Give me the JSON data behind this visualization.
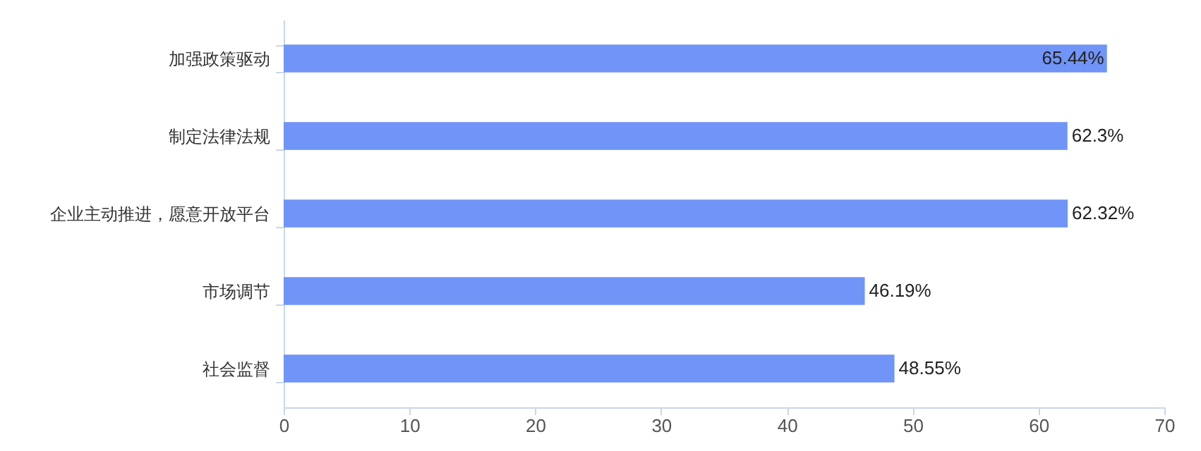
{
  "chart_data": {
    "type": "bar",
    "orientation": "horizontal",
    "categories": [
      "加强政策驱动",
      "制定法律法规",
      "企业主动推进，愿意开放平台",
      "市场调节",
      "社会监督"
    ],
    "values": [
      65.44,
      62.3,
      62.32,
      46.19,
      48.55
    ],
    "value_labels": [
      "65.44%",
      "62.3%",
      "62.32%",
      "46.19%",
      "48.55%"
    ],
    "color": "#7094f8",
    "xlim": [
      0,
      70
    ],
    "xticks": [
      0,
      10,
      20,
      30,
      40,
      50,
      60,
      70
    ],
    "grid": false
  }
}
